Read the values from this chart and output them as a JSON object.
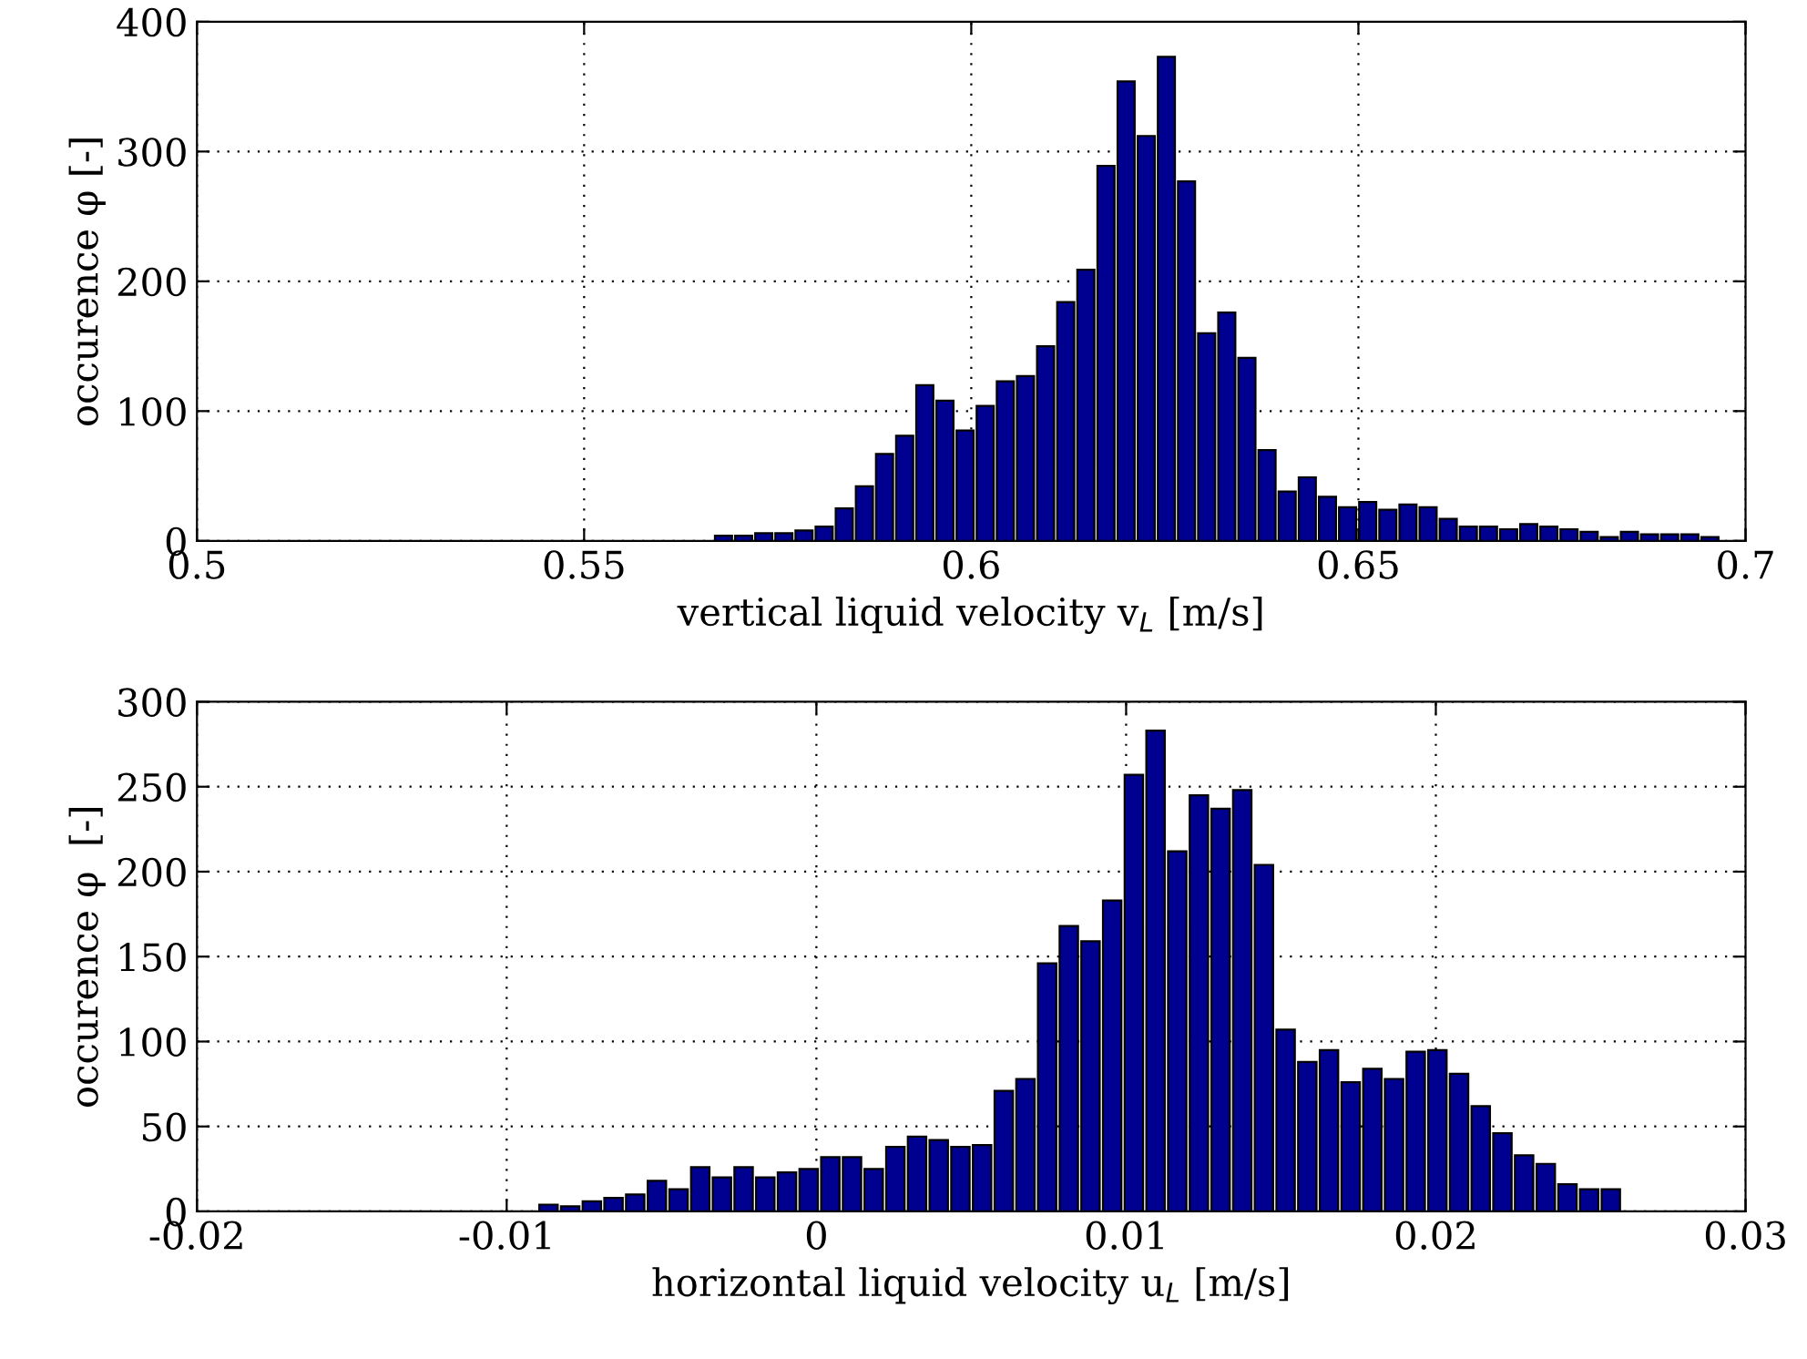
{
  "chart_data": [
    {
      "type": "histogram",
      "xlabel": "vertical liquid velocity v$_{L}$ [m/s]",
      "ylabel": "occurence φ [-]",
      "color": "#000090",
      "grid": true,
      "bins": [
        0.5667,
        0.5693,
        0.5719,
        0.5745,
        0.5771,
        0.5797,
        0.5823,
        0.5849,
        0.5875,
        0.5901,
        0.5927,
        0.5953,
        0.5979,
        0.6005,
        0.6031,
        0.6057,
        0.6083,
        0.6109,
        0.6135,
        0.6161,
        0.6187,
        0.6213,
        0.6239,
        0.6265,
        0.6291,
        0.6317,
        0.6343,
        0.6369,
        0.6395,
        0.6421,
        0.6447,
        0.6473,
        0.6499,
        0.6525,
        0.6551,
        0.6577,
        0.6603,
        0.6629,
        0.6655,
        0.6681,
        0.6707,
        0.6733,
        0.6759,
        0.6785,
        0.6811,
        0.6837,
        0.6863,
        0.6889,
        0.6915,
        0.6941,
        0.6967
      ],
      "values": [
        4,
        4,
        6,
        6,
        8,
        11,
        25,
        42,
        67,
        81,
        120,
        108,
        85,
        104,
        123,
        127,
        150,
        184,
        209,
        289,
        354,
        312,
        373,
        277,
        160,
        176,
        141,
        70,
        38,
        49,
        34,
        26,
        30,
        24,
        28,
        26,
        17,
        11,
        11,
        9,
        13,
        11,
        9,
        7,
        3,
        7,
        5,
        5,
        5,
        3
      ],
      "xlim": [
        0.5,
        0.7
      ],
      "xticks": [
        0.5,
        0.55,
        0.6,
        0.65,
        0.7
      ],
      "ylim": [
        0,
        400
      ],
      "yticks": [
        0,
        100,
        200,
        300,
        400
      ]
    },
    {
      "type": "histogram",
      "xlabel": "horizontal liquid velocity u$_{L}$ [m/s]",
      "ylabel": "occurence φ  [-]",
      "color": "#000090",
      "grid": true,
      "bins": [
        -0.009,
        -0.0083,
        -0.0076,
        -0.0069,
        -0.0062,
        -0.0055,
        -0.0048,
        -0.0041,
        -0.0034,
        -0.0027,
        -0.002,
        -0.0013,
        -0.0006,
        0.0001,
        0.0008,
        0.0015,
        0.0022,
        0.0029,
        0.0036,
        0.0043,
        0.005,
        0.0057,
        0.0064,
        0.0071,
        0.0078,
        0.0085,
        0.0092,
        0.0099,
        0.0106,
        0.0113,
        0.012,
        0.0127,
        0.0134,
        0.0141,
        0.0148,
        0.0155,
        0.0162,
        0.0169,
        0.0176,
        0.0183,
        0.019,
        0.0197,
        0.0204,
        0.0211,
        0.0218,
        0.0225,
        0.0232,
        0.0239,
        0.0246,
        0.0253,
        0.026
      ],
      "values": [
        4,
        3,
        6,
        8,
        10,
        18,
        13,
        26,
        20,
        26,
        20,
        23,
        25,
        32,
        32,
        25,
        38,
        44,
        42,
        38,
        39,
        71,
        78,
        146,
        168,
        159,
        183,
        257,
        283,
        212,
        245,
        237,
        248,
        204,
        107,
        88,
        95,
        76,
        84,
        78,
        94,
        95,
        81,
        62,
        46,
        33,
        28,
        16,
        13,
        13
      ],
      "xlim": [
        -0.02,
        0.03
      ],
      "xticks": [
        {
          "value": -0.02,
          "label": "-0.02"
        },
        {
          "value": -0.01,
          "label": "-0.01"
        },
        0,
        0.01,
        0.02,
        0.03
      ],
      "ylim": [
        0,
        300
      ],
      "yticks": [
        0,
        50,
        100,
        150,
        200,
        250,
        300
      ]
    }
  ]
}
